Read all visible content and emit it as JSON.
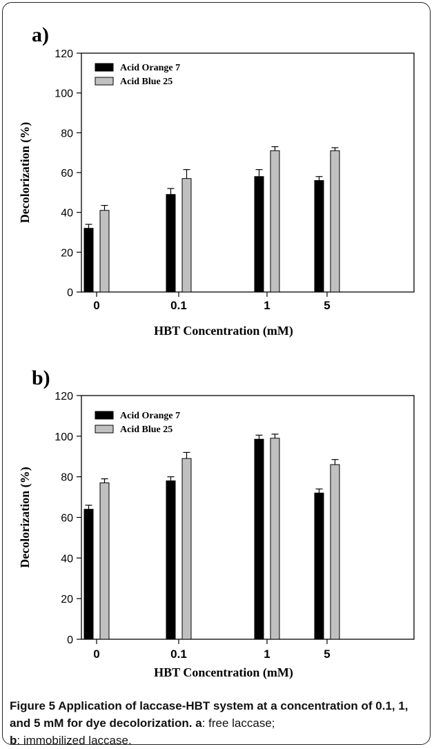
{
  "chart_data": [
    {
      "type": "bar",
      "panel_label": "a)",
      "categories": [
        "0",
        "0.1",
        "1",
        "5"
      ],
      "series": [
        {
          "name": "Acid Orange 7",
          "values": [
            32,
            49,
            58,
            56
          ],
          "errors": [
            2,
            3,
            3.5,
            2
          ],
          "color": "#000000"
        },
        {
          "name": "Acid Blue 25",
          "values": [
            41,
            57,
            71,
            71
          ],
          "errors": [
            2.5,
            4.5,
            2,
            1.5
          ],
          "color": "#c0c0c0"
        }
      ],
      "xlabel": "HBT Concentration (mM)",
      "ylabel": "Decolorization (%)",
      "ylim": [
        0,
        120
      ],
      "yticks": [
        "0",
        "20",
        "40",
        "60",
        "80",
        "100",
        "120"
      ],
      "legend_position": "top-left",
      "grid": false
    },
    {
      "type": "bar",
      "panel_label": "b)",
      "categories": [
        "0",
        "0.1",
        "1",
        "5"
      ],
      "series": [
        {
          "name": "Acid Orange 7",
          "values": [
            64,
            78,
            98.5,
            72
          ],
          "errors": [
            2,
            2,
            2,
            2
          ],
          "color": "#000000"
        },
        {
          "name": "Acid Blue 25",
          "values": [
            77,
            89,
            99,
            86
          ],
          "errors": [
            2,
            3,
            2,
            2.5
          ],
          "color": "#c0c0c0"
        }
      ],
      "xlabel": "HBT Concentration (mM)",
      "ylabel": "Decolorization (%)",
      "ylim": [
        0,
        120
      ],
      "yticks": [
        "0",
        "20",
        "40",
        "60",
        "80",
        "100",
        "120"
      ],
      "legend_position": "top-left",
      "grid": false
    }
  ],
  "caption": {
    "figure_label": "Figure 5",
    "title": " Application of laccase-HBT system at a concentration of 0.1, 1, and 5 mM for dye decolorization.",
    "part_a_label": "a",
    "part_a_text": ": free laccase;",
    "part_b_label": "b",
    "part_b_text": ": immobilized laccase."
  }
}
